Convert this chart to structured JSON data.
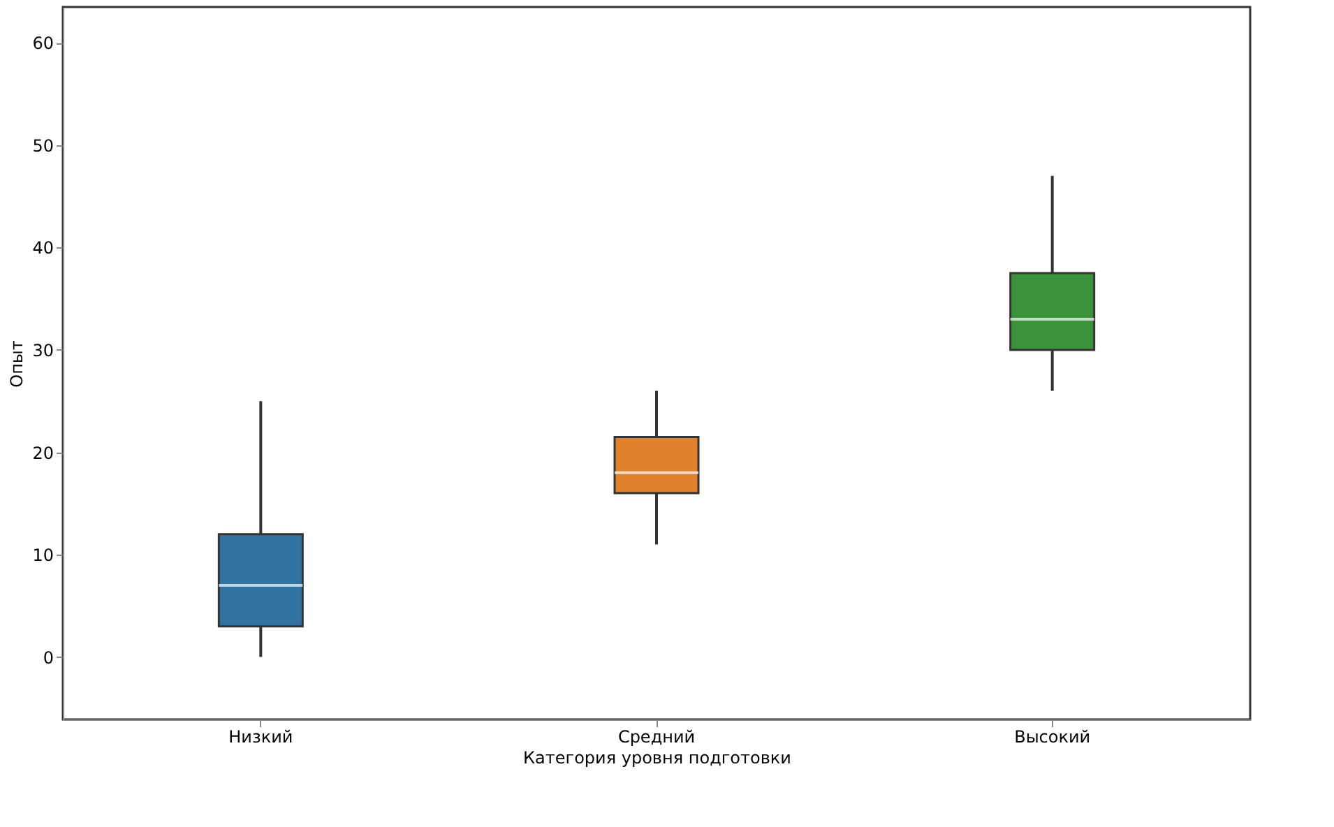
{
  "chart_data": {
    "type": "box",
    "xlabel": "Категория уровня подготовки",
    "ylabel": "Опыт",
    "categories": [
      "Низкий",
      "Средний",
      "Высокий"
    ],
    "colors": [
      "#3274a1",
      "#e1812c",
      "#3a923a"
    ],
    "boxes": [
      {
        "low": 0,
        "q1": 3,
        "median": 7,
        "q3": 12,
        "high": 25
      },
      {
        "low": 11,
        "q1": 16,
        "median": 18,
        "q3": 21.5,
        "high": 26
      },
      {
        "low": 26,
        "q1": 30,
        "median": 33,
        "q3": 37.5,
        "high": 47
      }
    ],
    "ylim": [
      -6.1,
      63.5
    ],
    "yticks": [
      0,
      10,
      20,
      30,
      40,
      50,
      60
    ],
    "grid": false
  }
}
